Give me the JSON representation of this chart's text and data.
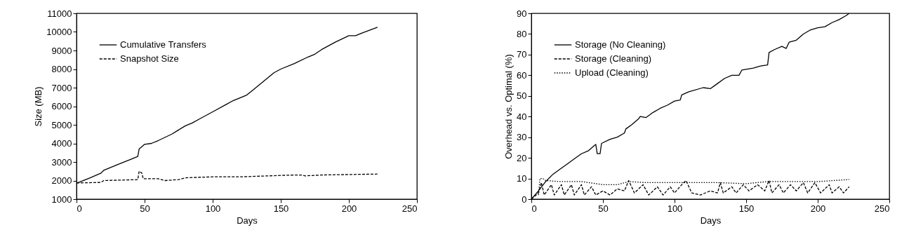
{
  "chart_data": [
    {
      "type": "line",
      "xlabel": "Days",
      "ylabel": "Size (MB)",
      "xlim": [
        0,
        250
      ],
      "ylim": [
        1000,
        11000
      ],
      "xticks": [
        0,
        50,
        100,
        150,
        200,
        250
      ],
      "yticks": [
        1000,
        2000,
        3000,
        4000,
        5000,
        6000,
        7000,
        8000,
        9000,
        10000,
        11000
      ],
      "legend": "top left",
      "grid": false,
      "series": [
        {
          "name": "Cumulative Transfers",
          "color": "#000000",
          "line_style": "solid",
          "x": [
            0,
            10,
            18,
            20,
            30,
            40,
            45,
            46,
            50,
            55,
            60,
            70,
            80,
            85,
            90,
            100,
            110,
            115,
            120,
            125,
            130,
            140,
            145,
            150,
            160,
            170,
            175,
            180,
            190,
            200,
            205,
            210,
            221
          ],
          "values": [
            1850,
            2150,
            2400,
            2550,
            2850,
            3150,
            3300,
            3700,
            3950,
            4000,
            4150,
            4500,
            4950,
            5100,
            5300,
            5700,
            6100,
            6300,
            6450,
            6600,
            6900,
            7500,
            7800,
            8000,
            8300,
            8650,
            8800,
            9050,
            9450,
            9800,
            9800,
            9950,
            10250
          ]
        },
        {
          "name": "Snapshot Size",
          "color": "#000000",
          "line_style": "dashed",
          "x": [
            0,
            18,
            20,
            45,
            46,
            48,
            49,
            60,
            65,
            75,
            80,
            100,
            120,
            140,
            160,
            165,
            168,
            180,
            221
          ],
          "values": [
            1870,
            1900,
            2000,
            2050,
            2500,
            2400,
            2100,
            2100,
            2000,
            2050,
            2150,
            2200,
            2200,
            2250,
            2300,
            2300,
            2250,
            2300,
            2350
          ]
        }
      ]
    },
    {
      "type": "line",
      "xlabel": "Days",
      "ylabel": "Overhead vs. Optimal (%)",
      "xlim": [
        0,
        250
      ],
      "ylim": [
        0,
        90
      ],
      "xticks": [
        0,
        50,
        100,
        150,
        200,
        250
      ],
      "yticks": [
        0,
        10,
        20,
        30,
        40,
        50,
        60,
        70,
        80,
        90
      ],
      "legend": "top left",
      "grid": false,
      "series": [
        {
          "name": "Storage (No Cleaning)",
          "color": "#000000",
          "line_style": "solid",
          "x": [
            0,
            5,
            10,
            15,
            20,
            25,
            30,
            35,
            40,
            44,
            45,
            46,
            48,
            49,
            55,
            60,
            65,
            66,
            70,
            75,
            76,
            80,
            85,
            90,
            95,
            100,
            104,
            105,
            110,
            120,
            125,
            130,
            135,
            140,
            145,
            147,
            155,
            160,
            165,
            166,
            170,
            175,
            178,
            180,
            185,
            190,
            195,
            200,
            205,
            210,
            215,
            220,
            222
          ],
          "values": [
            0,
            4,
            8.5,
            12,
            14.5,
            17,
            19.5,
            22,
            23.5,
            26,
            26.5,
            22,
            22,
            27,
            29,
            30,
            32,
            34,
            36,
            39,
            40,
            39.5,
            42,
            44,
            45.5,
            47.5,
            48,
            50.5,
            52,
            54,
            53.5,
            56,
            58.5,
            60,
            60,
            62.5,
            63.5,
            64.5,
            65,
            71,
            72.5,
            74,
            73,
            76,
            77,
            80,
            82,
            83,
            83.5,
            85.5,
            87,
            89,
            90
          ]
        },
        {
          "name": "Storage (Cleaning)",
          "color": "#000000",
          "line_style": "dashed",
          "x": [
            0,
            5,
            7,
            9,
            14,
            16,
            21,
            23,
            28,
            30,
            35,
            37,
            42,
            45,
            50,
            55,
            60,
            65,
            68,
            72,
            78,
            82,
            88,
            92,
            97,
            100,
            105,
            108,
            112,
            118,
            125,
            130,
            132,
            134,
            140,
            143,
            148,
            152,
            158,
            163,
            166,
            168,
            173,
            176,
            181,
            185,
            190,
            193,
            198,
            202,
            208,
            210,
            215,
            218,
            222
          ],
          "values": [
            0,
            3,
            8,
            2,
            7,
            2,
            7,
            2,
            7,
            2,
            7,
            2,
            6,
            2,
            4,
            2,
            5,
            4,
            9,
            3,
            7,
            2,
            6,
            2,
            6,
            3,
            7,
            9,
            3,
            2,
            4,
            3,
            8,
            3,
            6,
            3,
            7,
            4,
            7,
            4,
            9,
            3,
            7,
            3,
            7,
            4,
            8,
            3,
            8,
            3,
            7,
            3,
            6,
            3,
            6
          ]
        },
        {
          "name": "Upload (Cleaning)",
          "color": "#000000",
          "line_style": "dotted",
          "x": [
            5,
            6,
            8,
            10,
            20,
            35,
            50,
            60,
            68,
            80,
            100,
            130,
            150,
            165,
            180,
            200,
            222
          ],
          "values": [
            2,
            10,
            10,
            9,
            8.5,
            8.5,
            7,
            7,
            8.5,
            8,
            8,
            8,
            7.5,
            8.5,
            8.5,
            8.5,
            9.5
          ]
        }
      ]
    }
  ]
}
